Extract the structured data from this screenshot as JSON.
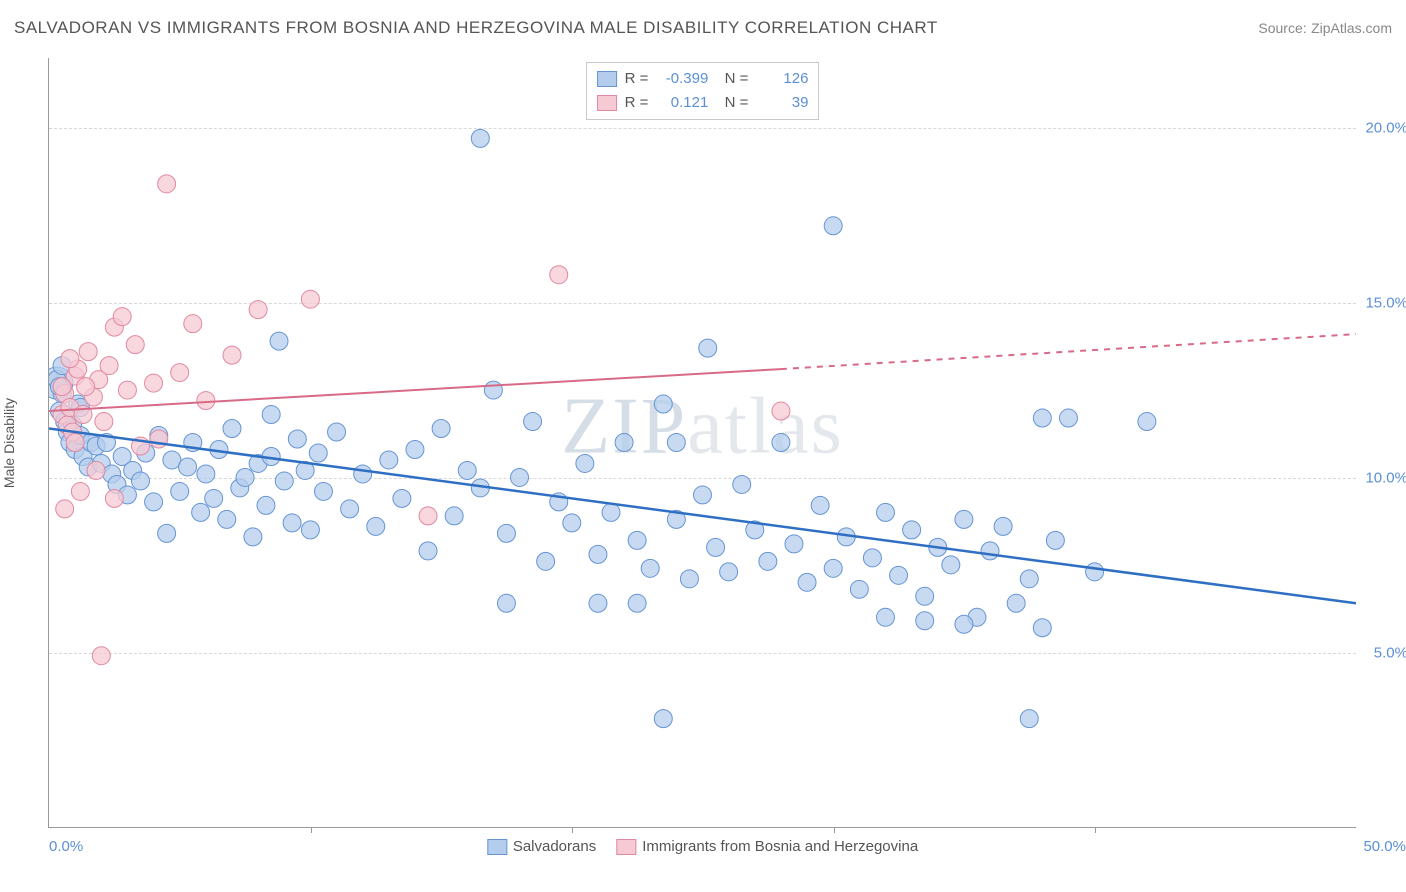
{
  "title": "SALVADORAN VS IMMIGRANTS FROM BOSNIA AND HERZEGOVINA MALE DISABILITY CORRELATION CHART",
  "source_label": "Source:",
  "source_value": "ZipAtlas.com",
  "watermark": "ZIPatlas",
  "chart": {
    "type": "scatter",
    "ylabel": "Male Disability",
    "xlim": [
      0,
      50
    ],
    "ylim": [
      0,
      22
    ],
    "xlim_labels": [
      "0.0%",
      "50.0%"
    ],
    "ytick_positions": [
      5,
      10,
      15,
      20
    ],
    "ytick_labels": [
      "5.0%",
      "10.0%",
      "15.0%",
      "20.0%"
    ],
    "xtick_marks": [
      10,
      20,
      30,
      40
    ],
    "background_color": "#ffffff",
    "grid_color": "#d8d8d8",
    "axis_color": "#999999",
    "tick_label_color": "#5b8fd6",
    "series": [
      {
        "name": "Salvadorans",
        "marker_fill": "#b4cdec",
        "marker_stroke": "#6695d4",
        "marker_opacity": 0.75,
        "trend_color": "#2f6fc3",
        "trend_width": 2.5,
        "r_value": "-0.399",
        "n_value": "126",
        "trend": {
          "x1": 0,
          "y1": 11.4,
          "x2": 50,
          "y2": 6.4
        },
        "points": [
          [
            0.3,
            12.8
          ],
          [
            0.4,
            11.9
          ],
          [
            0.5,
            12.4
          ],
          [
            0.6,
            11.6
          ],
          [
            0.7,
            11.3
          ],
          [
            0.8,
            11.0
          ],
          [
            0.9,
            11.5
          ],
          [
            1.0,
            10.8
          ],
          [
            1.1,
            12.1
          ],
          [
            1.2,
            11.2
          ],
          [
            1.3,
            10.6
          ],
          [
            1.5,
            10.3
          ],
          [
            1.6,
            11.0
          ],
          [
            1.8,
            10.9
          ],
          [
            2.0,
            10.4
          ],
          [
            2.2,
            11.0
          ],
          [
            2.4,
            10.1
          ],
          [
            2.6,
            9.8
          ],
          [
            2.8,
            10.6
          ],
          [
            3.0,
            9.5
          ],
          [
            3.2,
            10.2
          ],
          [
            3.5,
            9.9
          ],
          [
            3.7,
            10.7
          ],
          [
            4.0,
            9.3
          ],
          [
            4.2,
            11.2
          ],
          [
            4.5,
            8.4
          ],
          [
            4.7,
            10.5
          ],
          [
            5.0,
            9.6
          ],
          [
            5.3,
            10.3
          ],
          [
            5.5,
            11.0
          ],
          [
            5.8,
            9.0
          ],
          [
            6.0,
            10.1
          ],
          [
            6.3,
            9.4
          ],
          [
            6.5,
            10.8
          ],
          [
            6.8,
            8.8
          ],
          [
            7.0,
            11.4
          ],
          [
            7.3,
            9.7
          ],
          [
            7.5,
            10.0
          ],
          [
            7.8,
            8.3
          ],
          [
            8.0,
            10.4
          ],
          [
            8.3,
            9.2
          ],
          [
            8.5,
            10.6
          ],
          [
            8.8,
            13.9
          ],
          [
            9.0,
            9.9
          ],
          [
            9.3,
            8.7
          ],
          [
            9.5,
            11.1
          ],
          [
            9.8,
            10.2
          ],
          [
            10.0,
            8.5
          ],
          [
            10.3,
            10.7
          ],
          [
            10.5,
            9.6
          ],
          [
            11.0,
            11.3
          ],
          [
            11.5,
            9.1
          ],
          [
            12.0,
            10.1
          ],
          [
            12.5,
            8.6
          ],
          [
            13.0,
            10.5
          ],
          [
            13.5,
            9.4
          ],
          [
            14.0,
            10.8
          ],
          [
            14.5,
            7.9
          ],
          [
            15.0,
            11.4
          ],
          [
            15.5,
            8.9
          ],
          [
            16.0,
            10.2
          ],
          [
            16.5,
            9.7
          ],
          [
            17.0,
            12.5
          ],
          [
            17.5,
            8.4
          ],
          [
            18.0,
            10.0
          ],
          [
            18.5,
            11.6
          ],
          [
            19.0,
            7.6
          ],
          [
            19.5,
            9.3
          ],
          [
            16.5,
            19.7
          ],
          [
            20.0,
            8.7
          ],
          [
            20.5,
            10.4
          ],
          [
            21.0,
            7.8
          ],
          [
            21.5,
            9.0
          ],
          [
            22.0,
            11.0
          ],
          [
            22.5,
            8.2
          ],
          [
            23.0,
            7.4
          ],
          [
            23.5,
            12.1
          ],
          [
            24.0,
            8.8
          ],
          [
            24.5,
            7.1
          ],
          [
            25.0,
            9.5
          ],
          [
            25.2,
            13.7
          ],
          [
            25.5,
            8.0
          ],
          [
            26.0,
            7.3
          ],
          [
            26.5,
            9.8
          ],
          [
            27.0,
            8.5
          ],
          [
            27.5,
            7.6
          ],
          [
            28.0,
            11.0
          ],
          [
            28.5,
            8.1
          ],
          [
            29.0,
            7.0
          ],
          [
            29.5,
            9.2
          ],
          [
            30.0,
            17.2
          ],
          [
            30.0,
            7.4
          ],
          [
            30.5,
            8.3
          ],
          [
            31.0,
            6.8
          ],
          [
            31.5,
            7.7
          ],
          [
            32.0,
            9.0
          ],
          [
            32.5,
            7.2
          ],
          [
            33.0,
            8.5
          ],
          [
            33.5,
            6.6
          ],
          [
            34.0,
            8.0
          ],
          [
            34.5,
            7.5
          ],
          [
            35.0,
            8.8
          ],
          [
            35.5,
            6.0
          ],
          [
            36.0,
            7.9
          ],
          [
            36.5,
            8.6
          ],
          [
            37.0,
            6.4
          ],
          [
            37.5,
            7.1
          ],
          [
            38.0,
            5.7
          ],
          [
            38.5,
            8.2
          ],
          [
            38.0,
            11.7
          ],
          [
            39.0,
            11.7
          ],
          [
            40.0,
            7.3
          ],
          [
            42.0,
            11.6
          ],
          [
            23.5,
            3.1
          ],
          [
            37.5,
            3.1
          ],
          [
            17.5,
            6.4
          ],
          [
            21.0,
            6.4
          ],
          [
            22.5,
            6.4
          ],
          [
            32.0,
            6.0
          ],
          [
            33.5,
            5.9
          ],
          [
            35.0,
            5.8
          ],
          [
            24.0,
            11.0
          ],
          [
            0.5,
            13.2
          ],
          [
            0.4,
            12.6
          ],
          [
            1.2,
            12.0
          ],
          [
            8.5,
            11.8
          ]
        ]
      },
      {
        "name": "Immigrants from Bosnia and Herzegovina",
        "marker_fill": "#f6cad4",
        "marker_stroke": "#e0899f",
        "marker_opacity": 0.75,
        "trend_color": "#d86a87",
        "trend_width": 2,
        "r_value": "0.121",
        "n_value": "39",
        "trend_solid": {
          "x1": 0,
          "y1": 11.9,
          "x2": 28,
          "y2": 13.1
        },
        "trend_dashed": {
          "x1": 28,
          "y1": 13.1,
          "x2": 50,
          "y2": 14.1
        },
        "points": [
          [
            0.5,
            11.8
          ],
          [
            0.6,
            12.4
          ],
          [
            0.7,
            11.5
          ],
          [
            0.8,
            12.0
          ],
          [
            0.9,
            11.3
          ],
          [
            1.0,
            12.9
          ],
          [
            1.1,
            13.1
          ],
          [
            1.3,
            11.8
          ],
          [
            1.5,
            13.6
          ],
          [
            1.7,
            12.3
          ],
          [
            1.9,
            12.8
          ],
          [
            2.1,
            11.6
          ],
          [
            2.3,
            13.2
          ],
          [
            2.5,
            14.3
          ],
          [
            2.8,
            14.6
          ],
          [
            3.0,
            12.5
          ],
          [
            3.3,
            13.8
          ],
          [
            4.0,
            12.7
          ],
          [
            4.5,
            18.4
          ],
          [
            5.0,
            13.0
          ],
          [
            5.5,
            14.4
          ],
          [
            6.0,
            12.2
          ],
          [
            7.0,
            13.5
          ],
          [
            8.0,
            14.8
          ],
          [
            10.0,
            15.1
          ],
          [
            0.6,
            9.1
          ],
          [
            1.2,
            9.6
          ],
          [
            1.8,
            10.2
          ],
          [
            2.5,
            9.4
          ],
          [
            3.5,
            10.9
          ],
          [
            4.2,
            11.1
          ],
          [
            2.0,
            4.9
          ],
          [
            14.5,
            8.9
          ],
          [
            19.5,
            15.8
          ],
          [
            28.0,
            11.9
          ],
          [
            1.0,
            11.0
          ],
          [
            1.4,
            12.6
          ],
          [
            0.5,
            12.6
          ],
          [
            0.8,
            13.4
          ]
        ]
      }
    ],
    "legend_bottom": [
      {
        "label": "Salvadorans",
        "swatch_fill": "#b4cdec",
        "swatch_stroke": "#6695d4"
      },
      {
        "label": "Immigrants from Bosnia and Herzegovina",
        "swatch_fill": "#f6cad4",
        "swatch_stroke": "#e0899f"
      }
    ]
  }
}
